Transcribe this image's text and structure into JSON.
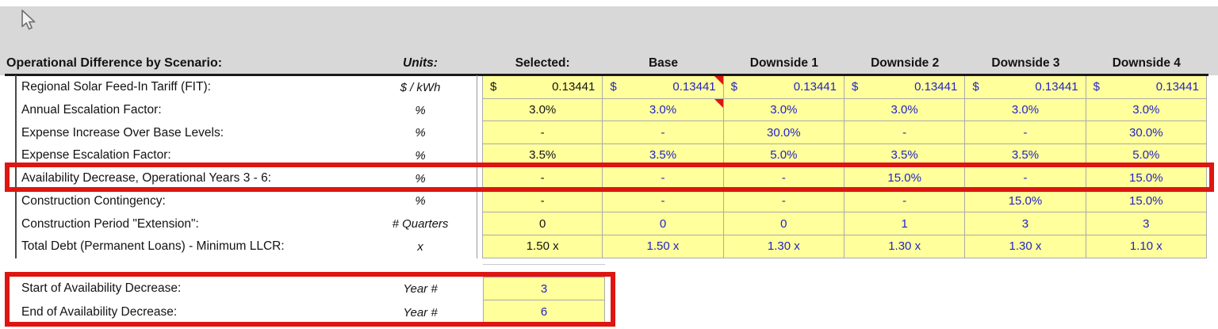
{
  "table": {
    "title": "Operational Difference by Scenario:",
    "units_header": "Units:",
    "scenario_headers": [
      "Selected:",
      "Base",
      "Downside 1",
      "Downside 2",
      "Downside 3",
      "Downside 4"
    ],
    "rows": [
      {
        "label": "Regional Solar Feed-In Tariff (FIT):",
        "units": "$ / kWh",
        "currency_symbol": "$",
        "values": [
          "0.13441",
          "0.13441",
          "0.13441",
          "0.13441",
          "0.13441",
          "0.13441"
        ],
        "comment_cols": [
          1
        ]
      },
      {
        "label": "Annual Escalation Factor:",
        "units": "%",
        "values": [
          "3.0%",
          "3.0%",
          "3.0%",
          "3.0%",
          "3.0%",
          "3.0%"
        ],
        "comment_cols": [
          1
        ]
      },
      {
        "label": "Expense Increase Over Base Levels:",
        "units": "%",
        "values": [
          "-",
          "-",
          "30.0%",
          "-",
          "-",
          "30.0%"
        ]
      },
      {
        "label": "Expense Escalation Factor:",
        "units": "%",
        "values": [
          "3.5%",
          "3.5%",
          "5.0%",
          "3.5%",
          "3.5%",
          "5.0%"
        ]
      },
      {
        "label": "Availability Decrease, Operational Years 3 - 6:",
        "units": "%",
        "values": [
          "-",
          "-",
          "-",
          "15.0%",
          "-",
          "15.0%"
        ],
        "highlighted": true
      },
      {
        "label": "Construction Contingency:",
        "units": "%",
        "values": [
          "-",
          "-",
          "-",
          "-",
          "15.0%",
          "15.0%"
        ]
      },
      {
        "label": "Construction Period \"Extension\":",
        "units": "# Quarters",
        "values": [
          "0",
          "0",
          "0",
          "1",
          "3",
          "3"
        ]
      },
      {
        "label": "Total Debt (Permanent Loans) - Minimum LLCR:",
        "units": "x",
        "values": [
          "1.50 x",
          "1.50 x",
          "1.30 x",
          "1.30 x",
          "1.30 x",
          "1.10 x"
        ]
      }
    ]
  },
  "availability_inputs": {
    "rows": [
      {
        "label": "Start of Availability Decrease:",
        "units": "Year #",
        "value": "3"
      },
      {
        "label": "End of Availability Decrease:",
        "units": "Year #",
        "value": "6"
      }
    ],
    "highlighted": true
  },
  "icons": {
    "cursor": "arrow-cursor",
    "comment_indicator": "comment-note-triangle-icon"
  },
  "colors": {
    "input_cell_bg": "#FFFF9C",
    "header_band_bg": "#D8D8D8",
    "input_text_blue": "#2323C6",
    "selected_text_black": "#131313",
    "annotation_red": "#DE1511",
    "grid_border": "#ABABAB"
  }
}
